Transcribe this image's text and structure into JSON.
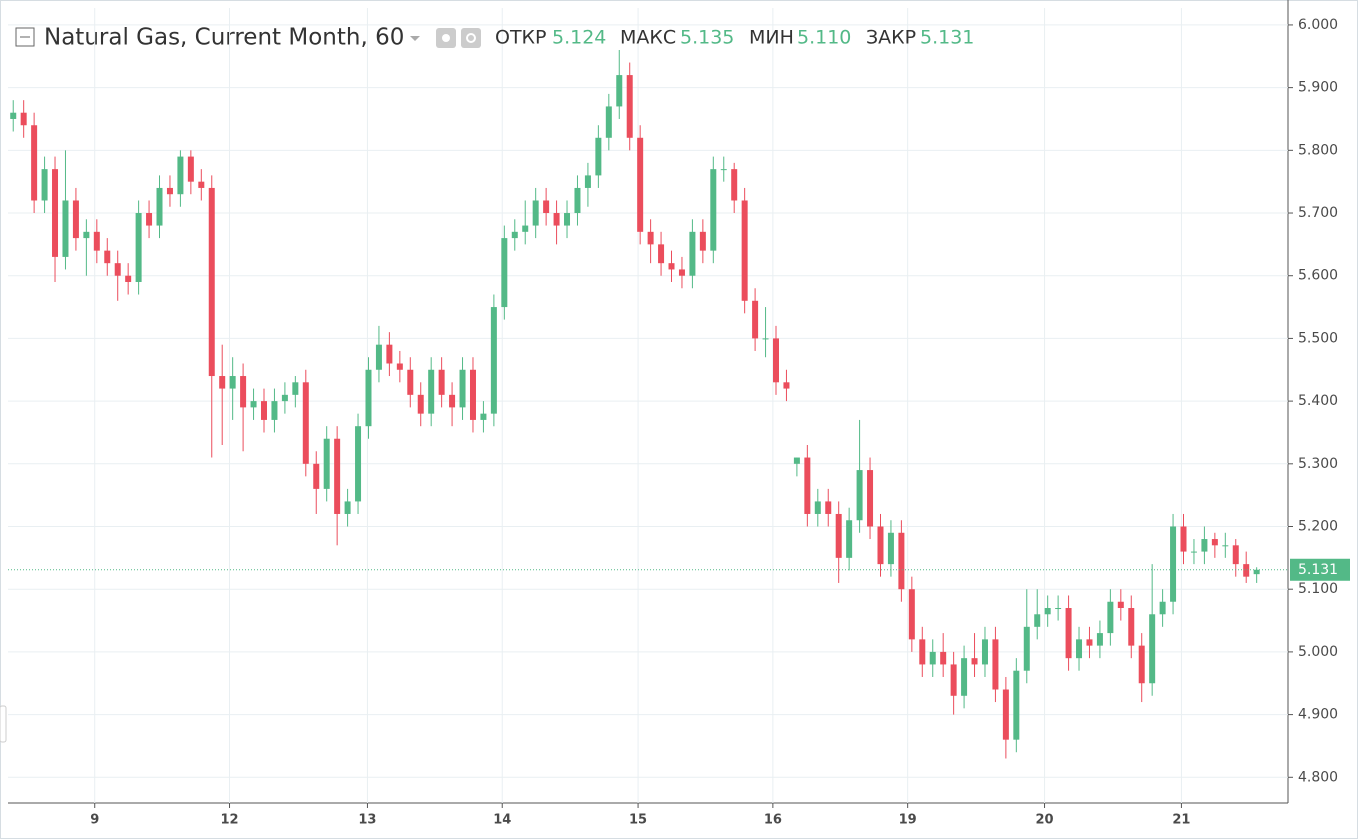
{
  "chart_data": {
    "type": "candlestick",
    "title": "Natural Gas, Current Month, 60",
    "header": {
      "names": [
        "ОТКР",
        "МАКС",
        "МИН",
        "ЗАКР"
      ],
      "values": [
        5.124,
        5.135,
        5.11,
        5.131
      ],
      "value_labels": [
        "5.124",
        "5.135",
        "5.110",
        "5.131"
      ]
    },
    "last_price": 5.131,
    "up_color": "#53b987",
    "down_color": "#eb4d5c",
    "open": [
      5.85,
      5.86,
      5.84,
      5.72,
      5.77,
      5.63,
      5.72,
      5.66,
      5.67,
      5.64,
      5.62,
      5.6,
      5.59,
      5.7,
      5.68,
      5.74,
      5.73,
      5.79,
      5.75,
      5.74,
      5.44,
      5.42,
      5.44,
      5.39,
      5.4,
      5.37,
      5.4,
      5.41,
      5.43,
      5.3,
      5.26,
      5.34,
      5.22,
      5.24,
      5.36,
      5.45,
      5.49,
      5.46,
      5.45,
      5.41,
      5.38,
      5.45,
      5.41,
      5.39,
      5.45,
      5.37,
      5.38,
      5.55,
      5.66,
      5.67,
      5.68,
      5.72,
      5.7,
      5.68,
      5.7,
      5.74,
      5.76,
      5.82,
      5.87,
      5.92,
      5.82,
      5.67,
      5.65,
      5.62,
      5.61,
      5.6,
      5.67,
      5.64,
      5.77,
      5.77,
      5.72,
      5.56,
      5.5,
      5.5,
      5.43,
      5.3,
      5.31,
      5.22,
      5.24,
      5.22,
      5.15,
      5.21,
      5.29,
      5.2,
      5.14,
      5.19,
      5.1,
      5.02,
      4.98,
      5.0,
      4.98,
      4.93,
      4.99,
      4.98,
      5.02,
      4.94,
      4.86,
      4.97,
      5.04,
      5.06,
      5.07,
      5.07,
      4.99,
      5.02,
      5.01,
      5.03,
      5.08,
      5.07,
      5.01,
      4.95,
      5.06,
      5.08,
      5.2,
      5.16,
      5.16,
      5.18,
      5.17,
      5.17,
      5.14,
      5.124
    ],
    "high": [
      5.88,
      5.88,
      5.86,
      5.79,
      5.79,
      5.8,
      5.74,
      5.69,
      5.69,
      5.66,
      5.64,
      5.62,
      5.72,
      5.72,
      5.76,
      5.76,
      5.8,
      5.8,
      5.77,
      5.76,
      5.49,
      5.47,
      5.46,
      5.42,
      5.42,
      5.42,
      5.43,
      5.44,
      5.45,
      5.32,
      5.36,
      5.36,
      5.26,
      5.38,
      5.47,
      5.52,
      5.51,
      5.48,
      5.47,
      5.43,
      5.47,
      5.47,
      5.43,
      5.47,
      5.47,
      5.4,
      5.57,
      5.68,
      5.69,
      5.72,
      5.74,
      5.74,
      5.72,
      5.72,
      5.76,
      5.78,
      5.84,
      5.89,
      5.96,
      5.94,
      5.84,
      5.69,
      5.67,
      5.64,
      5.63,
      5.69,
      5.69,
      5.79,
      5.79,
      5.78,
      5.74,
      5.58,
      5.55,
      5.52,
      5.45,
      5.31,
      5.33,
      5.26,
      5.26,
      5.24,
      5.23,
      5.37,
      5.31,
      5.22,
      5.21,
      5.21,
      5.12,
      5.04,
      5.02,
      5.03,
      5.0,
      5.01,
      5.03,
      5.04,
      5.04,
      4.96,
      4.99,
      5.1,
      5.1,
      5.09,
      5.09,
      5.09,
      5.04,
      5.04,
      5.05,
      5.1,
      5.1,
      5.09,
      5.03,
      5.14,
      5.1,
      5.22,
      5.22,
      5.18,
      5.2,
      5.19,
      5.19,
      5.18,
      5.16,
      5.135
    ],
    "low": [
      5.83,
      5.82,
      5.7,
      5.7,
      5.59,
      5.61,
      5.64,
      5.6,
      5.62,
      5.6,
      5.56,
      5.57,
      5.57,
      5.66,
      5.66,
      5.71,
      5.71,
      5.73,
      5.72,
      5.31,
      5.33,
      5.37,
      5.32,
      5.37,
      5.35,
      5.35,
      5.38,
      5.39,
      5.28,
      5.22,
      5.24,
      5.17,
      5.2,
      5.22,
      5.34,
      5.43,
      5.44,
      5.43,
      5.39,
      5.36,
      5.36,
      5.39,
      5.36,
      5.37,
      5.35,
      5.35,
      5.36,
      5.53,
      5.64,
      5.65,
      5.66,
      5.68,
      5.65,
      5.66,
      5.68,
      5.71,
      5.74,
      5.8,
      5.85,
      5.8,
      5.65,
      5.62,
      5.6,
      5.59,
      5.58,
      5.58,
      5.62,
      5.62,
      5.75,
      5.7,
      5.54,
      5.48,
      5.47,
      5.41,
      5.4,
      5.28,
      5.2,
      5.2,
      5.2,
      5.11,
      5.13,
      5.19,
      5.18,
      5.12,
      5.12,
      5.08,
      5.0,
      4.96,
      4.96,
      4.96,
      4.9,
      4.91,
      4.96,
      4.96,
      4.92,
      4.83,
      4.84,
      4.95,
      5.02,
      5.04,
      5.05,
      4.97,
      4.97,
      4.99,
      4.99,
      5.01,
      5.05,
      4.99,
      4.92,
      4.93,
      5.04,
      5.06,
      5.14,
      5.14,
      5.14,
      5.15,
      5.15,
      5.12,
      5.11,
      5.11
    ],
    "close": [
      5.86,
      5.84,
      5.72,
      5.77,
      5.63,
      5.72,
      5.66,
      5.67,
      5.64,
      5.62,
      5.6,
      5.59,
      5.7,
      5.68,
      5.74,
      5.73,
      5.79,
      5.75,
      5.74,
      5.44,
      5.42,
      5.44,
      5.39,
      5.4,
      5.37,
      5.4,
      5.41,
      5.43,
      5.3,
      5.26,
      5.34,
      5.22,
      5.24,
      5.36,
      5.45,
      5.49,
      5.46,
      5.45,
      5.41,
      5.38,
      5.45,
      5.41,
      5.39,
      5.45,
      5.37,
      5.38,
      5.55,
      5.66,
      5.67,
      5.68,
      5.72,
      5.7,
      5.68,
      5.7,
      5.74,
      5.76,
      5.82,
      5.87,
      5.92,
      5.82,
      5.67,
      5.65,
      5.62,
      5.61,
      5.6,
      5.67,
      5.64,
      5.77,
      5.77,
      5.72,
      5.56,
      5.5,
      5.5,
      5.43,
      5.42,
      5.31,
      5.22,
      5.24,
      5.22,
      5.15,
      5.21,
      5.29,
      5.2,
      5.14,
      5.19,
      5.1,
      5.02,
      4.98,
      5.0,
      4.98,
      4.93,
      4.99,
      4.98,
      5.02,
      4.94,
      4.86,
      4.97,
      5.04,
      5.06,
      5.07,
      5.07,
      4.99,
      5.02,
      5.01,
      5.03,
      5.08,
      5.07,
      5.01,
      4.95,
      5.06,
      5.08,
      5.2,
      5.16,
      5.16,
      5.18,
      5.17,
      5.17,
      5.14,
      5.12,
      5.131
    ],
    "xlim": [
      -0.5,
      122
    ],
    "xticks": [
      {
        "value": 7.8,
        "label": "9"
      },
      {
        "value": 20.7,
        "label": "12"
      },
      {
        "value": 33.9,
        "label": "13"
      },
      {
        "value": 46.8,
        "label": "14"
      },
      {
        "value": 59.8,
        "label": "15"
      },
      {
        "value": 72.7,
        "label": "16"
      },
      {
        "value": 85.6,
        "label": "19"
      },
      {
        "value": 98.7,
        "label": "20"
      },
      {
        "value": 111.8,
        "label": "21"
      }
    ],
    "ylim": [
      4.759,
      6.027
    ],
    "yticks": [
      {
        "value": 4.8,
        "label": "4.800"
      },
      {
        "value": 4.9,
        "label": "4.900"
      },
      {
        "value": 5.0,
        "label": "5.000"
      },
      {
        "value": 5.1,
        "label": "5.100"
      },
      {
        "value": 5.2,
        "label": "5.200"
      },
      {
        "value": 5.3,
        "label": "5.300"
      },
      {
        "value": 5.4,
        "label": "5.400"
      },
      {
        "value": 5.5,
        "label": "5.500"
      },
      {
        "value": 5.6,
        "label": "5.600"
      },
      {
        "value": 5.7,
        "label": "5.700"
      },
      {
        "value": 5.8,
        "label": "5.800"
      },
      {
        "value": 5.9,
        "label": "5.900"
      },
      {
        "value": 6.0,
        "label": "6.000"
      }
    ],
    "grid": true
  }
}
